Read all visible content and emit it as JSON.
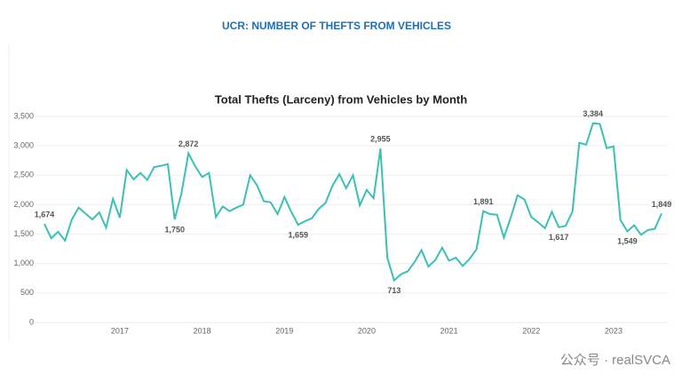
{
  "header": {
    "title": "UCR: NUMBER OF THEFTS FROM VEHICLES"
  },
  "watermark": "公众号 · realSVCA",
  "chart_data": {
    "type": "line",
    "title": "Total Thefts (Larceny) from Vehicles by Month",
    "color": "#3cbfb4",
    "grid": true,
    "ylim": [
      0,
      3500
    ],
    "yticks": [
      0,
      500,
      {
        "value": 1000,
        "label": "1,000"
      },
      {
        "value": 1500,
        "label": "1,500"
      },
      {
        "value": 2000,
        "label": "2,000"
      },
      {
        "value": 2500,
        "label": "2,500"
      },
      {
        "value": 3000,
        "label": "3,000"
      },
      {
        "value": 3500,
        "label": "3,500"
      }
    ],
    "categories": [
      null,
      null,
      null,
      null,
      null,
      null,
      null,
      null,
      null,
      null,
      null,
      "2017",
      null,
      null,
      null,
      null,
      null,
      null,
      null,
      null,
      null,
      null,
      null,
      "2018",
      null,
      null,
      null,
      null,
      null,
      null,
      null,
      null,
      null,
      null,
      null,
      "2019",
      null,
      null,
      null,
      null,
      null,
      null,
      null,
      null,
      null,
      null,
      null,
      "2020",
      null,
      null,
      null,
      null,
      null,
      null,
      null,
      null,
      null,
      null,
      null,
      "2021",
      null,
      null,
      null,
      null,
      null,
      null,
      null,
      null,
      null,
      null,
      null,
      "2022",
      null,
      null,
      null,
      null,
      null,
      null,
      null,
      null,
      null,
      null,
      null,
      "2023",
      null,
      null,
      null,
      null,
      null,
      null,
      null
    ],
    "values": [
      1674,
      1430,
      1540,
      1390,
      1750,
      1950,
      1850,
      1750,
      1870,
      1610,
      2100,
      1780,
      2590,
      2430,
      2540,
      2420,
      2640,
      2660,
      2690,
      1750,
      2200,
      2872,
      2650,
      2470,
      2540,
      1790,
      1970,
      1890,
      1950,
      2000,
      2500,
      2330,
      2060,
      2040,
      1840,
      2130,
      1880,
      1659,
      1720,
      1770,
      1930,
      2030,
      2320,
      2520,
      2280,
      2500,
      1990,
      2250,
      2110,
      2955,
      1100,
      713,
      820,
      870,
      1030,
      1230,
      950,
      1060,
      1270,
      1050,
      1100,
      960,
      1080,
      1240,
      1891,
      1840,
      1830,
      1440,
      1780,
      2160,
      2090,
      1790,
      1700,
      1600,
      1880,
      1617,
      1640,
      1880,
      3050,
      3020,
      3384,
      3370,
      2960,
      2990,
      1740,
      1549,
      1650,
      1490,
      1570,
      1590,
      1849
    ],
    "value_labels": [
      "1,674",
      null,
      null,
      null,
      null,
      null,
      null,
      null,
      null,
      null,
      null,
      null,
      null,
      null,
      null,
      null,
      null,
      null,
      null,
      "1,750",
      null,
      "2,872",
      null,
      null,
      null,
      null,
      null,
      null,
      null,
      null,
      null,
      null,
      null,
      null,
      null,
      null,
      null,
      "1,659",
      null,
      null,
      null,
      null,
      null,
      null,
      null,
      null,
      null,
      null,
      null,
      "2,955",
      null,
      "713",
      null,
      null,
      null,
      null,
      null,
      null,
      null,
      null,
      null,
      null,
      null,
      null,
      "1,891",
      null,
      null,
      null,
      null,
      null,
      null,
      null,
      null,
      null,
      null,
      "1,617",
      null,
      null,
      null,
      null,
      "3,384",
      null,
      null,
      null,
      null,
      "1,549",
      null,
      null,
      null,
      null,
      "1,849"
    ]
  }
}
